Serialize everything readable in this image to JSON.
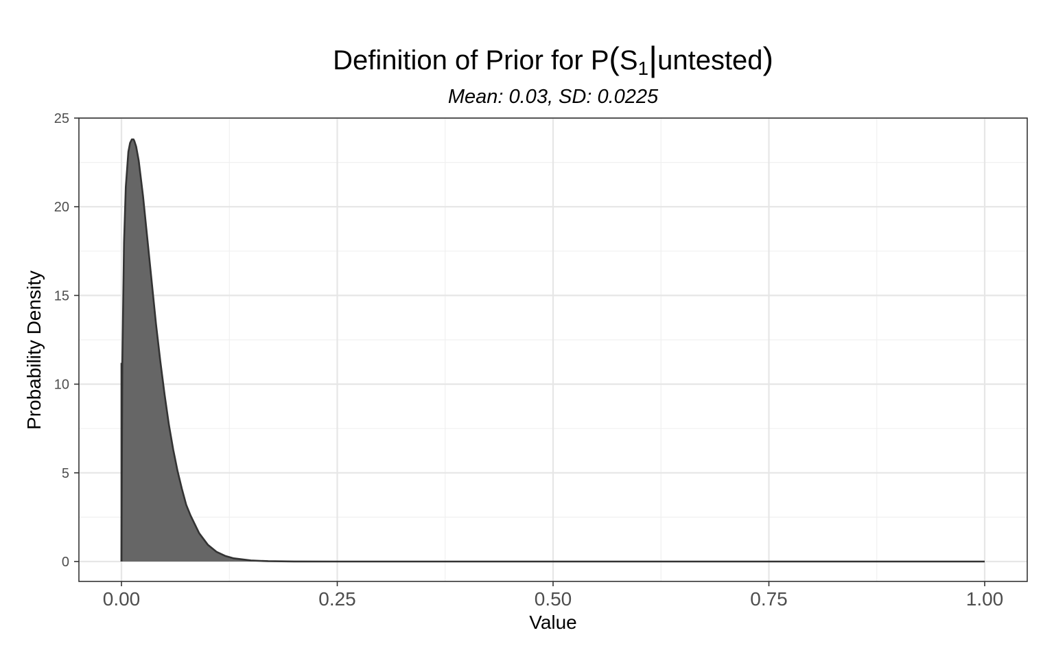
{
  "chart_data": {
    "type": "area",
    "title": {
      "prefix": "Definition of Prior for P",
      "open_paren": "(",
      "symbol": "S",
      "subscript": "1",
      "bar": "|",
      "condition": "untested",
      "close_paren": ")"
    },
    "subtitle": "Mean: 0.03, SD: 0.0225",
    "xlabel": "Value",
    "ylabel": "Probability Density",
    "xlim": [
      0,
      1
    ],
    "ylim": [
      0,
      25
    ],
    "x_ticks": [
      {
        "value": 0,
        "label": "0.00"
      },
      {
        "value": 0.25,
        "label": "0.25"
      },
      {
        "value": 0.5,
        "label": "0.50"
      },
      {
        "value": 0.75,
        "label": "0.75"
      },
      {
        "value": 1,
        "label": "1.00"
      }
    ],
    "y_ticks": [
      {
        "value": 0,
        "label": "0"
      },
      {
        "value": 5,
        "label": "5"
      },
      {
        "value": 10,
        "label": "10"
      },
      {
        "value": 15,
        "label": "15"
      },
      {
        "value": 20,
        "label": "20"
      },
      {
        "value": 25,
        "label": "25"
      }
    ],
    "grid": true,
    "fill_color": "#666666",
    "line_color": "#333333",
    "x": [
      0,
      0.001,
      0.003,
      0.005,
      0.008,
      0.01,
      0.012,
      0.014,
      0.015,
      0.017,
      0.02,
      0.025,
      0.03,
      0.035,
      0.04,
      0.045,
      0.05,
      0.055,
      0.06,
      0.065,
      0.07,
      0.075,
      0.08,
      0.09,
      0.1,
      0.11,
      0.12,
      0.13,
      0.15,
      0.17,
      0.2,
      0.25,
      0.3,
      0.4,
      0.5,
      0.6,
      0.7,
      0.8,
      0.9,
      1.0
    ],
    "values": [
      0,
      11.2,
      18.0,
      21.1,
      23.1,
      23.6,
      23.8,
      23.8,
      23.7,
      23.4,
      22.6,
      20.6,
      18.2,
      15.8,
      13.4,
      11.3,
      9.4,
      7.7,
      6.3,
      5.1,
      4.1,
      3.2,
      2.6,
      1.6,
      0.95,
      0.55,
      0.32,
      0.18,
      0.06,
      0.02,
      0.004,
      0,
      0,
      0,
      0,
      0,
      0,
      0,
      0,
      0
    ]
  }
}
